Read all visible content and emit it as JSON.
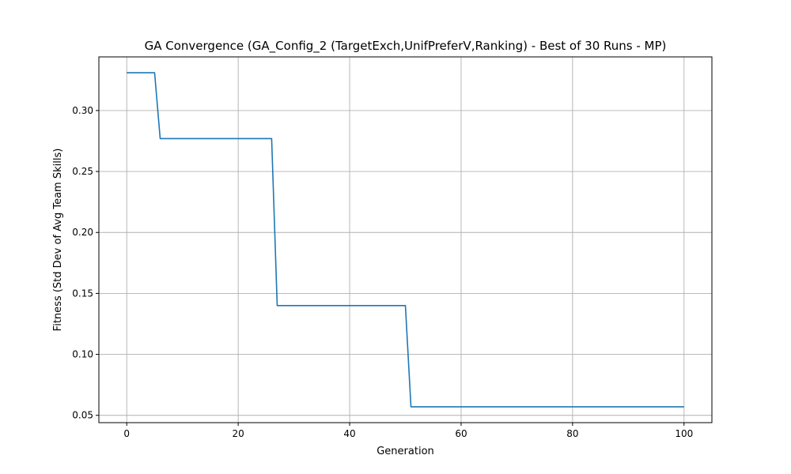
{
  "chart_data": {
    "type": "line",
    "title": "GA Convergence (GA_Config_2 (TargetExch,UnifPreferV,Ranking) - Best of 30 Runs - MP)",
    "xlabel": "Generation",
    "ylabel": "Fitness (Std Dev of Avg Team Skills)",
    "xlim": [
      -5,
      105
    ],
    "ylim": [
      0.044,
      0.344
    ],
    "xticks": [
      0,
      20,
      40,
      60,
      80,
      100
    ],
    "xtick_labels": [
      "0",
      "20",
      "40",
      "60",
      "80",
      "100"
    ],
    "yticks": [
      0.05,
      0.1,
      0.15,
      0.2,
      0.25,
      0.3
    ],
    "ytick_labels": [
      "0.05",
      "0.10",
      "0.15",
      "0.20",
      "0.25",
      "0.30"
    ],
    "grid": true,
    "line_color": "#1f77b4",
    "series": [
      {
        "x": [
          0,
          5,
          6,
          26,
          27,
          50,
          51,
          100
        ],
        "y": [
          0.331,
          0.331,
          0.277,
          0.277,
          0.14,
          0.14,
          0.057,
          0.057
        ]
      }
    ]
  }
}
